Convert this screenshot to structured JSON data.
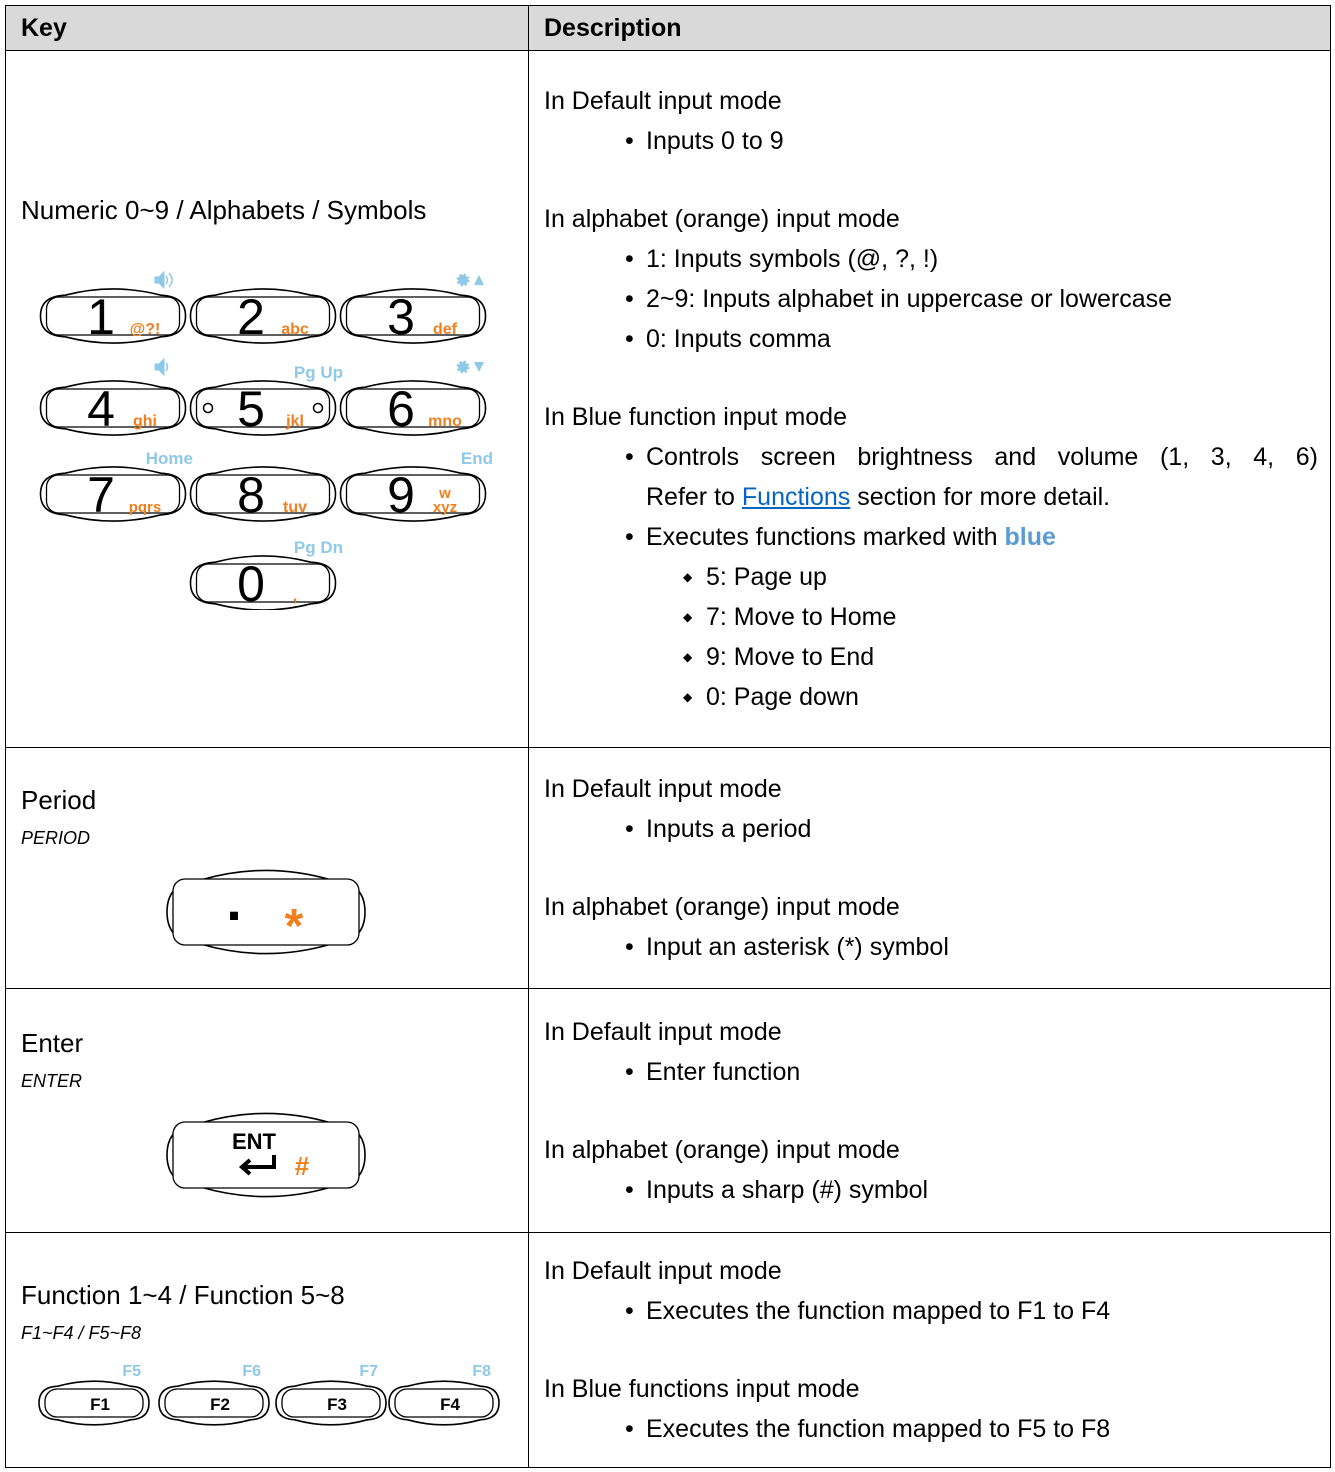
{
  "table": {
    "header": [
      "Key",
      "Description"
    ],
    "rows": [
      {
        "key": {
          "name": "Numeric 0~9 / Alphabets / Symbols",
          "keypad": [
            {
              "digit": "1",
              "letters": [
                "@?!"
              ]
            },
            {
              "digit": "2",
              "letters": [
                "abc"
              ]
            },
            {
              "digit": "3",
              "letters": [
                "def"
              ]
            },
            {
              "digit": "4",
              "letters": [
                "ghi"
              ]
            },
            {
              "digit": "5",
              "letters": [
                "jkl"
              ],
              "top": "Pg Up"
            },
            {
              "digit": "6",
              "letters": [
                "mno"
              ]
            },
            {
              "digit": "7",
              "letters": [
                "pqrs"
              ],
              "top": "Home"
            },
            {
              "digit": "8",
              "letters": [
                "tuv"
              ]
            },
            {
              "digit": "9",
              "letters": [
                "w",
                "xyz"
              ],
              "top": "End"
            },
            {
              "digit": "0",
              "letters": [
                ","
              ],
              "top": "Pg Dn"
            }
          ]
        },
        "description": [
          {
            "heading": "In Default input mode",
            "bullets": [
              {
                "text": "Inputs 0 to 9"
              }
            ]
          },
          {
            "heading": "In alphabet (orange) input mode",
            "bullets": [
              {
                "text": "1: Inputs symbols (@, ?, !)"
              },
              {
                "text": "2~9: Inputs alphabet in uppercase or lowercase"
              },
              {
                "text": "0: Inputs comma"
              }
            ]
          },
          {
            "heading": "In Blue function input mode",
            "bullets": [
              {
                "text": "Controls screen brightness and volume (1, 3, 4, 6)",
                "note": {
                  "pre": "Refer to",
                  "link": "Functions",
                  "post": "section for more detail."
                }
              },
              {
                "text": "Executes functions marked with",
                "emphasis": "blue",
                "sub": [
                  "5: Page up",
                  "7: Move to Home",
                  "9: Move to End",
                  "0: Page down"
                ]
              }
            ]
          }
        ]
      },
      {
        "key": {
          "name": "Period",
          "code": "PERIOD",
          "symbols": [
            ".",
            "*"
          ]
        },
        "description": [
          {
            "heading": "In Default input mode",
            "bullets": [
              {
                "text": "Inputs a period"
              }
            ]
          },
          {
            "heading": "In alphabet (orange) input mode",
            "bullets": [
              {
                "text": "Input an asterisk (*) symbol"
              }
            ]
          }
        ]
      },
      {
        "key": {
          "name": "Enter",
          "code": "ENTER",
          "symbols": [
            "ENT",
            "#"
          ]
        },
        "description": [
          {
            "heading": "In Default input mode",
            "bullets": [
              {
                "text": "Enter function"
              }
            ]
          },
          {
            "heading": "In alphabet (orange) input mode",
            "bullets": [
              {
                "text": "Inputs a sharp (#) symbol"
              }
            ]
          }
        ]
      },
      {
        "key": {
          "name": "Function 1~4 / Function 5~8",
          "code": "F1~F4 / F5~F8",
          "fkeys": [
            {
              "label": "F1",
              "top": "F5"
            },
            {
              "label": "F2",
              "top": "F6"
            },
            {
              "label": "F3",
              "top": "F7"
            },
            {
              "label": "F4",
              "top": "F8"
            }
          ]
        },
        "description": [
          {
            "heading": "In Default input mode",
            "bullets": [
              {
                "text": "Executes the function mapped to F1 to F4"
              }
            ]
          },
          {
            "heading": "In Blue functions input mode",
            "bullets": [
              {
                "text": "Executes the function mapped to F5 to F8"
              }
            ]
          }
        ]
      }
    ]
  }
}
